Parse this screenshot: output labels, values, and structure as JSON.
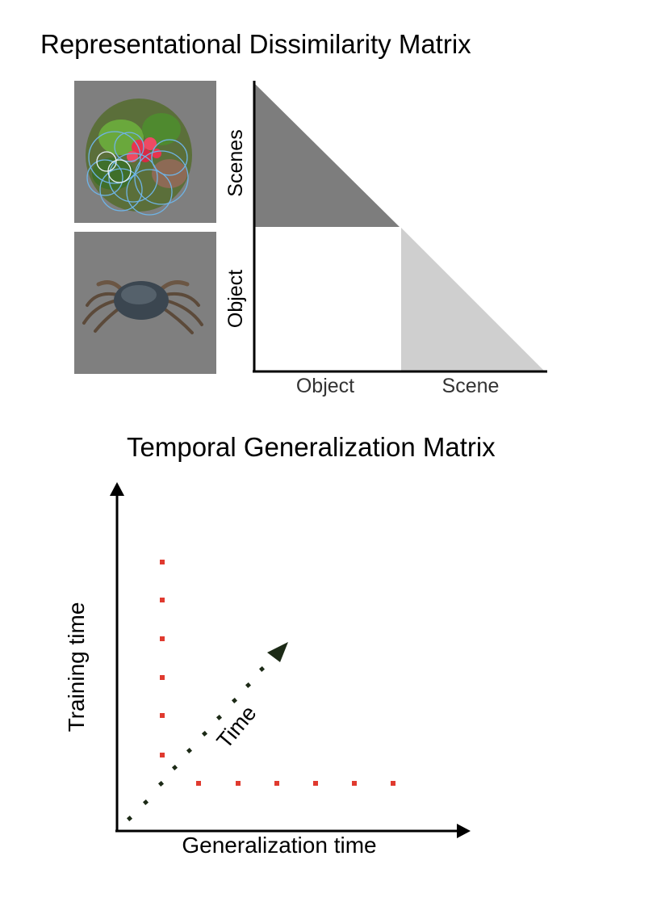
{
  "rdm": {
    "title": "Representational Dissimilarity Matrix",
    "y_labels": {
      "top": "Scenes",
      "bottom": "Object"
    },
    "x_labels": {
      "left": "Object",
      "right": "Scene"
    },
    "thumbnails": [
      {
        "name": "flower-scene-thumbnail",
        "description": "flower"
      },
      {
        "name": "crab-object-thumbnail",
        "description": "crab"
      }
    ],
    "colors": {
      "thumb_bg": "#7f7f7f",
      "dark_cell": "#7d7d7d",
      "light_cell": "#cfcfcf",
      "white_cell": "#ffffff"
    }
  },
  "tgm": {
    "title": "Temporal Generalization Matrix",
    "xlabel": "Generalization time",
    "ylabel": "Training time",
    "diag_label": "Time",
    "colors": {
      "dot_red": "#e03a2f",
      "dot_dark": "#1c2a16",
      "axis": "#000000"
    }
  }
}
